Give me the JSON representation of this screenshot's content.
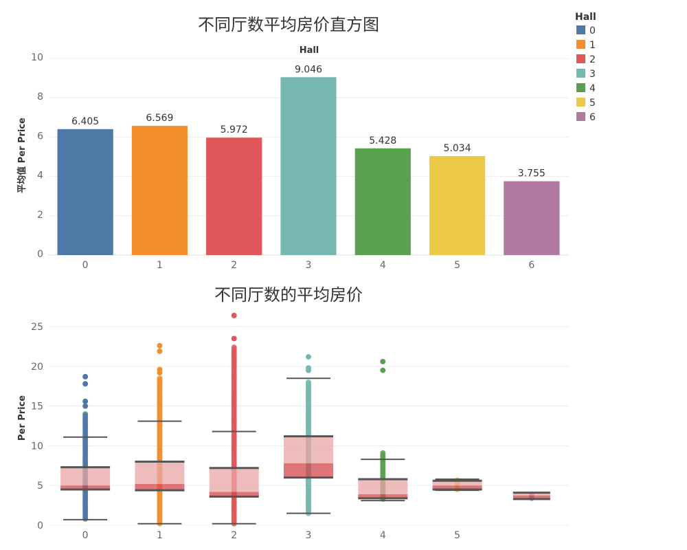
{
  "chart_data": [
    {
      "type": "bar",
      "title": "不同厅数平均房价直方图",
      "xlabel": "Hall",
      "ylabel": "平均值 Per Price",
      "categories": [
        "0",
        "1",
        "2",
        "3",
        "4",
        "5",
        "6"
      ],
      "values": [
        6.405,
        6.569,
        5.972,
        9.046,
        5.428,
        5.034,
        3.755
      ],
      "value_labels": [
        "6.405",
        "6.569",
        "5.972",
        "9.046",
        "5.428",
        "5.034",
        "3.755"
      ],
      "yticks": [
        "0",
        "2",
        "4",
        "6",
        "8",
        "10"
      ],
      "ylim": [
        0,
        10
      ],
      "grid": true
    },
    {
      "type": "box",
      "title": "不同厅数的平均房价",
      "xlabel": "",
      "ylabel": "Per Price",
      "categories": [
        "0",
        "1",
        "2",
        "3",
        "4",
        "5",
        ""
      ],
      "yticks": [
        "0",
        "5",
        "10",
        "15",
        "20",
        "25"
      ],
      "ylim": [
        0,
        27
      ],
      "grid": true,
      "boxes": [
        {
          "hall": "0",
          "min": 0.7,
          "q1": 4.5,
          "median": 5.0,
          "q3": 7.3,
          "max": 11.1,
          "points_range": [
            0.8,
            14.0
          ],
          "outliers": [
            15.0,
            15.6,
            17.8,
            18.7
          ]
        },
        {
          "hall": "1",
          "min": 0.2,
          "q1": 4.4,
          "median": 5.2,
          "q3": 8.0,
          "max": 13.1,
          "points_range": [
            0.2,
            18.5
          ],
          "outliers": [
            19.2,
            19.6,
            21.9,
            22.6
          ]
        },
        {
          "hall": "2",
          "min": 0.2,
          "q1": 3.6,
          "median": 4.2,
          "q3": 7.2,
          "max": 11.8,
          "points_range": [
            0.2,
            22.4
          ],
          "outliers": [
            23.5,
            26.4
          ]
        },
        {
          "hall": "3",
          "min": 1.5,
          "q1": 6.0,
          "median": 7.8,
          "q3": 11.2,
          "max": 18.5,
          "points_range": [
            1.5,
            18.0
          ],
          "outliers": [
            19.5,
            19.8,
            21.2
          ]
        },
        {
          "hall": "4",
          "min": 3.1,
          "q1": 3.4,
          "median": 3.9,
          "q3": 5.8,
          "max": 8.3,
          "points_range": [
            3.3,
            9.1
          ],
          "outliers": [
            19.5,
            20.6
          ]
        },
        {
          "hall": "5",
          "min": 4.4,
          "q1": 4.5,
          "median": 5.0,
          "q3": 5.6,
          "max": 5.8,
          "points_range": [
            4.5,
            5.7
          ],
          "outliers": []
        },
        {
          "hall": "6",
          "min": 3.3,
          "q1": 3.3,
          "median": 3.75,
          "q3": 4.1,
          "max": 4.1,
          "points_range": [
            3.4,
            3.9
          ],
          "outliers": []
        }
      ]
    }
  ],
  "legend": {
    "title": "Hall",
    "items": [
      {
        "label": "0",
        "color": "#4e79a7"
      },
      {
        "label": "1",
        "color": "#f28e2b"
      },
      {
        "label": "2",
        "color": "#e15759"
      },
      {
        "label": "3",
        "color": "#76b7b2"
      },
      {
        "label": "4",
        "color": "#59a14f"
      },
      {
        "label": "5",
        "color": "#edc948"
      },
      {
        "label": "6",
        "color": "#b07aa1"
      }
    ]
  }
}
